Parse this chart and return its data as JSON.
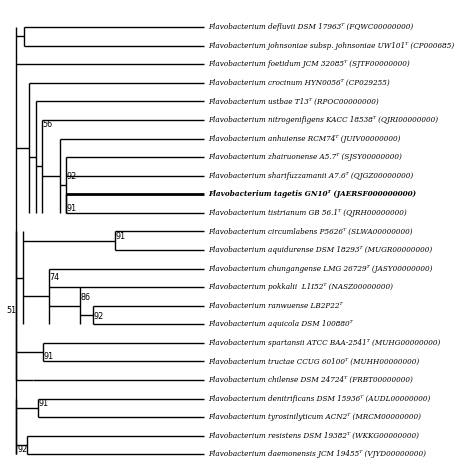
{
  "taxa": [
    {
      "name": "Flavobacterium defluvii DSM 17963ᵀ (FQWC00000000)",
      "bold": false,
      "y": 24
    },
    {
      "name": "Flavobacterium johnsoniae subsp. johnsoniae UW101ᵀ (CP000685)",
      "bold": false,
      "y": 23
    },
    {
      "name": "Flavobacterium foetidum JCM 32085ᵀ (SJTF00000000)",
      "bold": false,
      "y": 22
    },
    {
      "name": "Flavobacterium crocinum HYN0056ᵀ (CP029255)",
      "bold": false,
      "y": 21
    },
    {
      "name": "Flavobacterium ustbae T13ᵀ (RPOC00000000)",
      "bold": false,
      "y": 20
    },
    {
      "name": "Flavobacterium nitrogenifigens KACC 18538ᵀ (QJRI00000000)",
      "bold": false,
      "y": 19
    },
    {
      "name": "Flavobacterium anhuiense RCM74ᵀ (JUIV00000000)",
      "bold": false,
      "y": 18
    },
    {
      "name": "Flavobacterium zhairuonense A5.7ᵀ (SJSY00000000)",
      "bold": false,
      "y": 17
    },
    {
      "name": "Flavobacterium sharifuzzamanii A7.6ᵀ (QJGZ00000000)",
      "bold": false,
      "y": 16
    },
    {
      "name": "Flavobacterium tagetis GN10ᵀ (JAERSF000000000)",
      "bold": true,
      "y": 15
    },
    {
      "name": "Flavobacterium tistrianum GB 56.1ᵀ (QJRH00000000)",
      "bold": false,
      "y": 14
    },
    {
      "name": "Flavobacterium circumlabens P5626ᵀ (SLWA00000000)",
      "bold": false,
      "y": 13
    },
    {
      "name": "Flavobacterium aquidurense DSM 18293ᵀ (MUGR00000000)",
      "bold": false,
      "y": 12
    },
    {
      "name": "Flavobacterium chungangense LMG 26729ᵀ (JASY00000000)",
      "bold": false,
      "y": 11
    },
    {
      "name": "Flavobacterium pokkalii  L1I52ᵀ (NASZ00000000)",
      "bold": false,
      "y": 10
    },
    {
      "name": "Flavobacterium ranwuense LB2P22ᵀ",
      "bold": false,
      "y": 9
    },
    {
      "name": "Flavobacterium aquicola DSM 100880ᵀ",
      "bold": false,
      "y": 8
    },
    {
      "name": "Flavobacterium spartansii ATCC BAA-2541ᵀ (MUHG00000000)",
      "bold": false,
      "y": 7
    },
    {
      "name": "Flavobacterium tructae CCUG 60100ᵀ (MUHH00000000)",
      "bold": false,
      "y": 6
    },
    {
      "name": "Flavobacterium chilense DSM 24724ᵀ (FRBT00000000)",
      "bold": false,
      "y": 5
    },
    {
      "name": "Flavobacterium denitrificans DSM 15936ᵀ (AUDL00000000)",
      "bold": false,
      "y": 4
    },
    {
      "name": "Flavobacterium tyrosinilyticum ACN2ᵀ (MRCM00000000)",
      "bold": false,
      "y": 3
    },
    {
      "name": "Flavobacterium resistens DSM 19382ᵀ (WKKG00000000)",
      "bold": false,
      "y": 2
    },
    {
      "name": "Flavobacterium daemonensis JCM 19455ᵀ (VJYD00000000)",
      "bold": false,
      "y": 1
    }
  ],
  "lw": 1.0,
  "fig_bg": "white",
  "label_fontsize": 5.2,
  "bootstrap_fontsize": 5.8
}
